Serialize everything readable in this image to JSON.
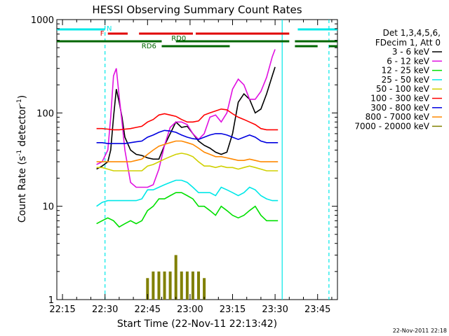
{
  "chart_data": {
    "type": "line",
    "title": "HESSI Observing Summary Count Rates",
    "xlabel": "Start Time (22-Nov-11 22:13:42)",
    "ylabel_main": "Count Rate (s",
    "ylabel_sup": "-1",
    "ylabel_mid": " detector",
    "ylabel_sup2": "-1",
    "ylabel_end": ")",
    "y_scale": "log",
    "ylim": [
      1,
      1000
    ],
    "xlim_minutes": [
      -2,
      97
    ],
    "x_ticks": [
      {
        "t": 0,
        "label": "22:15"
      },
      {
        "t": 15,
        "label": "22:30"
      },
      {
        "t": 30,
        "label": "22:45"
      },
      {
        "t": 45,
        "label": "23:00"
      },
      {
        "t": 60,
        "label": "23:15"
      },
      {
        "t": 75,
        "label": "23:30"
      },
      {
        "t": 90,
        "label": "23:45"
      }
    ],
    "y_ticks": [
      {
        "v": 1,
        "label": "1"
      },
      {
        "v": 10,
        "label": "10"
      },
      {
        "v": 100,
        "label": "100"
      },
      {
        "v": 1000,
        "label": "1000"
      }
    ],
    "legend": {
      "header": [
        "Det 1,3,4,5,6,",
        "FDecim 1, Att 0"
      ],
      "placement": "right"
    },
    "series": [
      {
        "name": "3 - 6 keV",
        "color": "#000000",
        "x": [
          12,
          14,
          16,
          17,
          18,
          19,
          20,
          21,
          22,
          24,
          26,
          28,
          30,
          32,
          34,
          36,
          38,
          40,
          42,
          44,
          46,
          48,
          50,
          52,
          54,
          56,
          58,
          60,
          62,
          64,
          66,
          68,
          70,
          72,
          74,
          75
        ],
        "y": [
          25,
          27,
          30,
          40,
          90,
          180,
          130,
          90,
          55,
          40,
          36,
          35,
          33,
          32,
          32,
          45,
          60,
          80,
          70,
          72,
          60,
          50,
          45,
          42,
          38,
          36,
          38,
          60,
          130,
          160,
          140,
          100,
          110,
          160,
          250,
          310
        ]
      },
      {
        "name": "6 - 12 keV",
        "color": "#e010e0",
        "x": [
          12,
          14,
          16,
          17,
          18,
          19,
          20,
          21,
          22,
          24,
          26,
          28,
          30,
          32,
          34,
          36,
          38,
          40,
          42,
          44,
          46,
          48,
          50,
          52,
          54,
          56,
          58,
          60,
          62,
          64,
          66,
          68,
          70,
          72,
          74,
          75
        ],
        "y": [
          28,
          30,
          40,
          90,
          250,
          300,
          150,
          80,
          40,
          18,
          16,
          16,
          16,
          17,
          25,
          45,
          70,
          80,
          80,
          75,
          60,
          52,
          60,
          90,
          95,
          80,
          100,
          180,
          230,
          200,
          140,
          140,
          170,
          240,
          400,
          480
        ]
      },
      {
        "name": "12 - 25 keV",
        "color": "#00e000",
        "x": [
          12,
          14,
          16,
          18,
          20,
          22,
          24,
          26,
          28,
          30,
          32,
          34,
          36,
          38,
          40,
          42,
          44,
          46,
          48,
          50,
          52,
          54,
          56,
          58,
          60,
          62,
          64,
          66,
          68,
          70,
          72,
          74,
          76
        ],
        "y": [
          6.5,
          7,
          7.5,
          7,
          6,
          6.5,
          7,
          6.5,
          7,
          9,
          10,
          12,
          12,
          13,
          14,
          14,
          13,
          12,
          10,
          10,
          9,
          8,
          10,
          9,
          8,
          7.5,
          8,
          9,
          10,
          8,
          7,
          7,
          7
        ]
      },
      {
        "name": "25 - 50 keV",
        "color": "#00e8e8",
        "x": [
          12,
          14,
          16,
          18,
          20,
          22,
          24,
          26,
          28,
          30,
          32,
          34,
          36,
          38,
          40,
          42,
          44,
          46,
          48,
          50,
          52,
          54,
          56,
          58,
          60,
          62,
          64,
          66,
          68,
          70,
          72,
          74,
          76
        ],
        "y": [
          10,
          11,
          11.5,
          11.5,
          11.5,
          11.5,
          11.5,
          11.5,
          12,
          15,
          15,
          16,
          17,
          18,
          19,
          19,
          18,
          16,
          14,
          14,
          14,
          13,
          16,
          15,
          14,
          13,
          14,
          16,
          15,
          13,
          12,
          11.5,
          11.5
        ]
      },
      {
        "name": "50 - 100 keV",
        "color": "#d0d000",
        "x": [
          12,
          14,
          16,
          18,
          20,
          22,
          24,
          26,
          28,
          30,
          32,
          34,
          36,
          38,
          40,
          42,
          44,
          46,
          48,
          50,
          52,
          54,
          56,
          58,
          60,
          62,
          64,
          66,
          68,
          70,
          72,
          74,
          76
        ],
        "y": [
          26,
          26,
          25,
          24,
          24,
          24,
          24,
          24,
          24,
          27,
          28,
          30,
          32,
          34,
          36,
          37,
          36,
          34,
          30,
          27,
          27,
          26,
          27,
          26,
          26,
          25,
          26,
          27,
          26,
          25,
          24,
          24,
          24
        ]
      },
      {
        "name": "100 - 300 keV",
        "color": "#ff0000",
        "x": [
          12,
          14,
          16,
          18,
          20,
          22,
          24,
          26,
          28,
          30,
          32,
          34,
          36,
          38,
          40,
          42,
          44,
          46,
          48,
          50,
          52,
          54,
          56,
          58,
          60,
          62,
          64,
          66,
          68,
          70,
          72,
          74,
          76
        ],
        "y": [
          68,
          68,
          67,
          66,
          66,
          67,
          68,
          70,
          72,
          80,
          85,
          95,
          98,
          95,
          92,
          85,
          80,
          80,
          82,
          95,
          100,
          105,
          110,
          108,
          98,
          90,
          85,
          80,
          75,
          68,
          66,
          66,
          66
        ]
      },
      {
        "name": "300 - 800 keV",
        "color": "#0000e0",
        "x": [
          12,
          14,
          16,
          18,
          20,
          22,
          24,
          26,
          28,
          30,
          32,
          34,
          36,
          38,
          40,
          42,
          44,
          46,
          48,
          50,
          52,
          54,
          56,
          58,
          60,
          62,
          64,
          66,
          68,
          70,
          72,
          74,
          76
        ],
        "y": [
          48,
          48,
          47,
          47,
          47,
          47,
          48,
          49,
          50,
          55,
          58,
          62,
          65,
          64,
          62,
          58,
          55,
          53,
          52,
          55,
          58,
          60,
          60,
          58,
          55,
          52,
          55,
          58,
          55,
          50,
          48,
          48,
          48
        ]
      },
      {
        "name": "800 - 7000 keV",
        "color": "#ff8800",
        "x": [
          12,
          14,
          16,
          18,
          20,
          22,
          24,
          26,
          28,
          30,
          32,
          34,
          36,
          38,
          40,
          42,
          44,
          46,
          48,
          50,
          52,
          54,
          56,
          58,
          60,
          62,
          64,
          66,
          68,
          70,
          72,
          74,
          76
        ],
        "y": [
          30,
          30,
          30,
          30,
          30,
          30,
          30,
          31,
          32,
          36,
          40,
          44,
          46,
          48,
          50,
          50,
          48,
          46,
          42,
          38,
          36,
          34,
          34,
          33,
          32,
          31,
          31,
          32,
          31,
          30,
          30,
          30,
          30
        ]
      },
      {
        "name": "7000 - 20000 keV",
        "color": "#808000",
        "x": [
          30,
          32,
          34,
          36,
          38,
          40,
          42,
          44,
          46,
          48,
          50
        ],
        "y": [
          1.7,
          2.0,
          2.0,
          2.0,
          2.0,
          3.0,
          2.0,
          2.0,
          2.0,
          2.0,
          1.7
        ]
      }
    ],
    "flag_bars": [
      {
        "label": "N",
        "color": "#00e8e8",
        "segments": [
          [
            -2,
            15
          ],
          [
            83,
            97
          ]
        ]
      },
      {
        "label": "F",
        "color": "#e00000",
        "segments": [
          [
            16,
            23
          ],
          [
            27,
            46
          ],
          [
            47,
            80
          ]
        ]
      },
      {
        "label": "RD0",
        "color": "#006600",
        "segments": [
          [
            -2,
            35
          ],
          [
            40,
            80
          ],
          [
            82,
            97
          ]
        ]
      },
      {
        "label": "RD6",
        "color": "#006600",
        "segments": [
          [
            35,
            59
          ],
          [
            82,
            90
          ],
          [
            94,
            97
          ]
        ]
      }
    ],
    "vertical_lines": [
      {
        "t": 15,
        "color": "#00e8e8",
        "style": "dashed"
      },
      {
        "t": 77.5,
        "color": "#00e8e8",
        "style": "solid"
      },
      {
        "t": 94,
        "color": "#00e8e8",
        "style": "dashed"
      }
    ],
    "footer_timestamp": "22-Nov-2011 22:18",
    "grid": false
  }
}
